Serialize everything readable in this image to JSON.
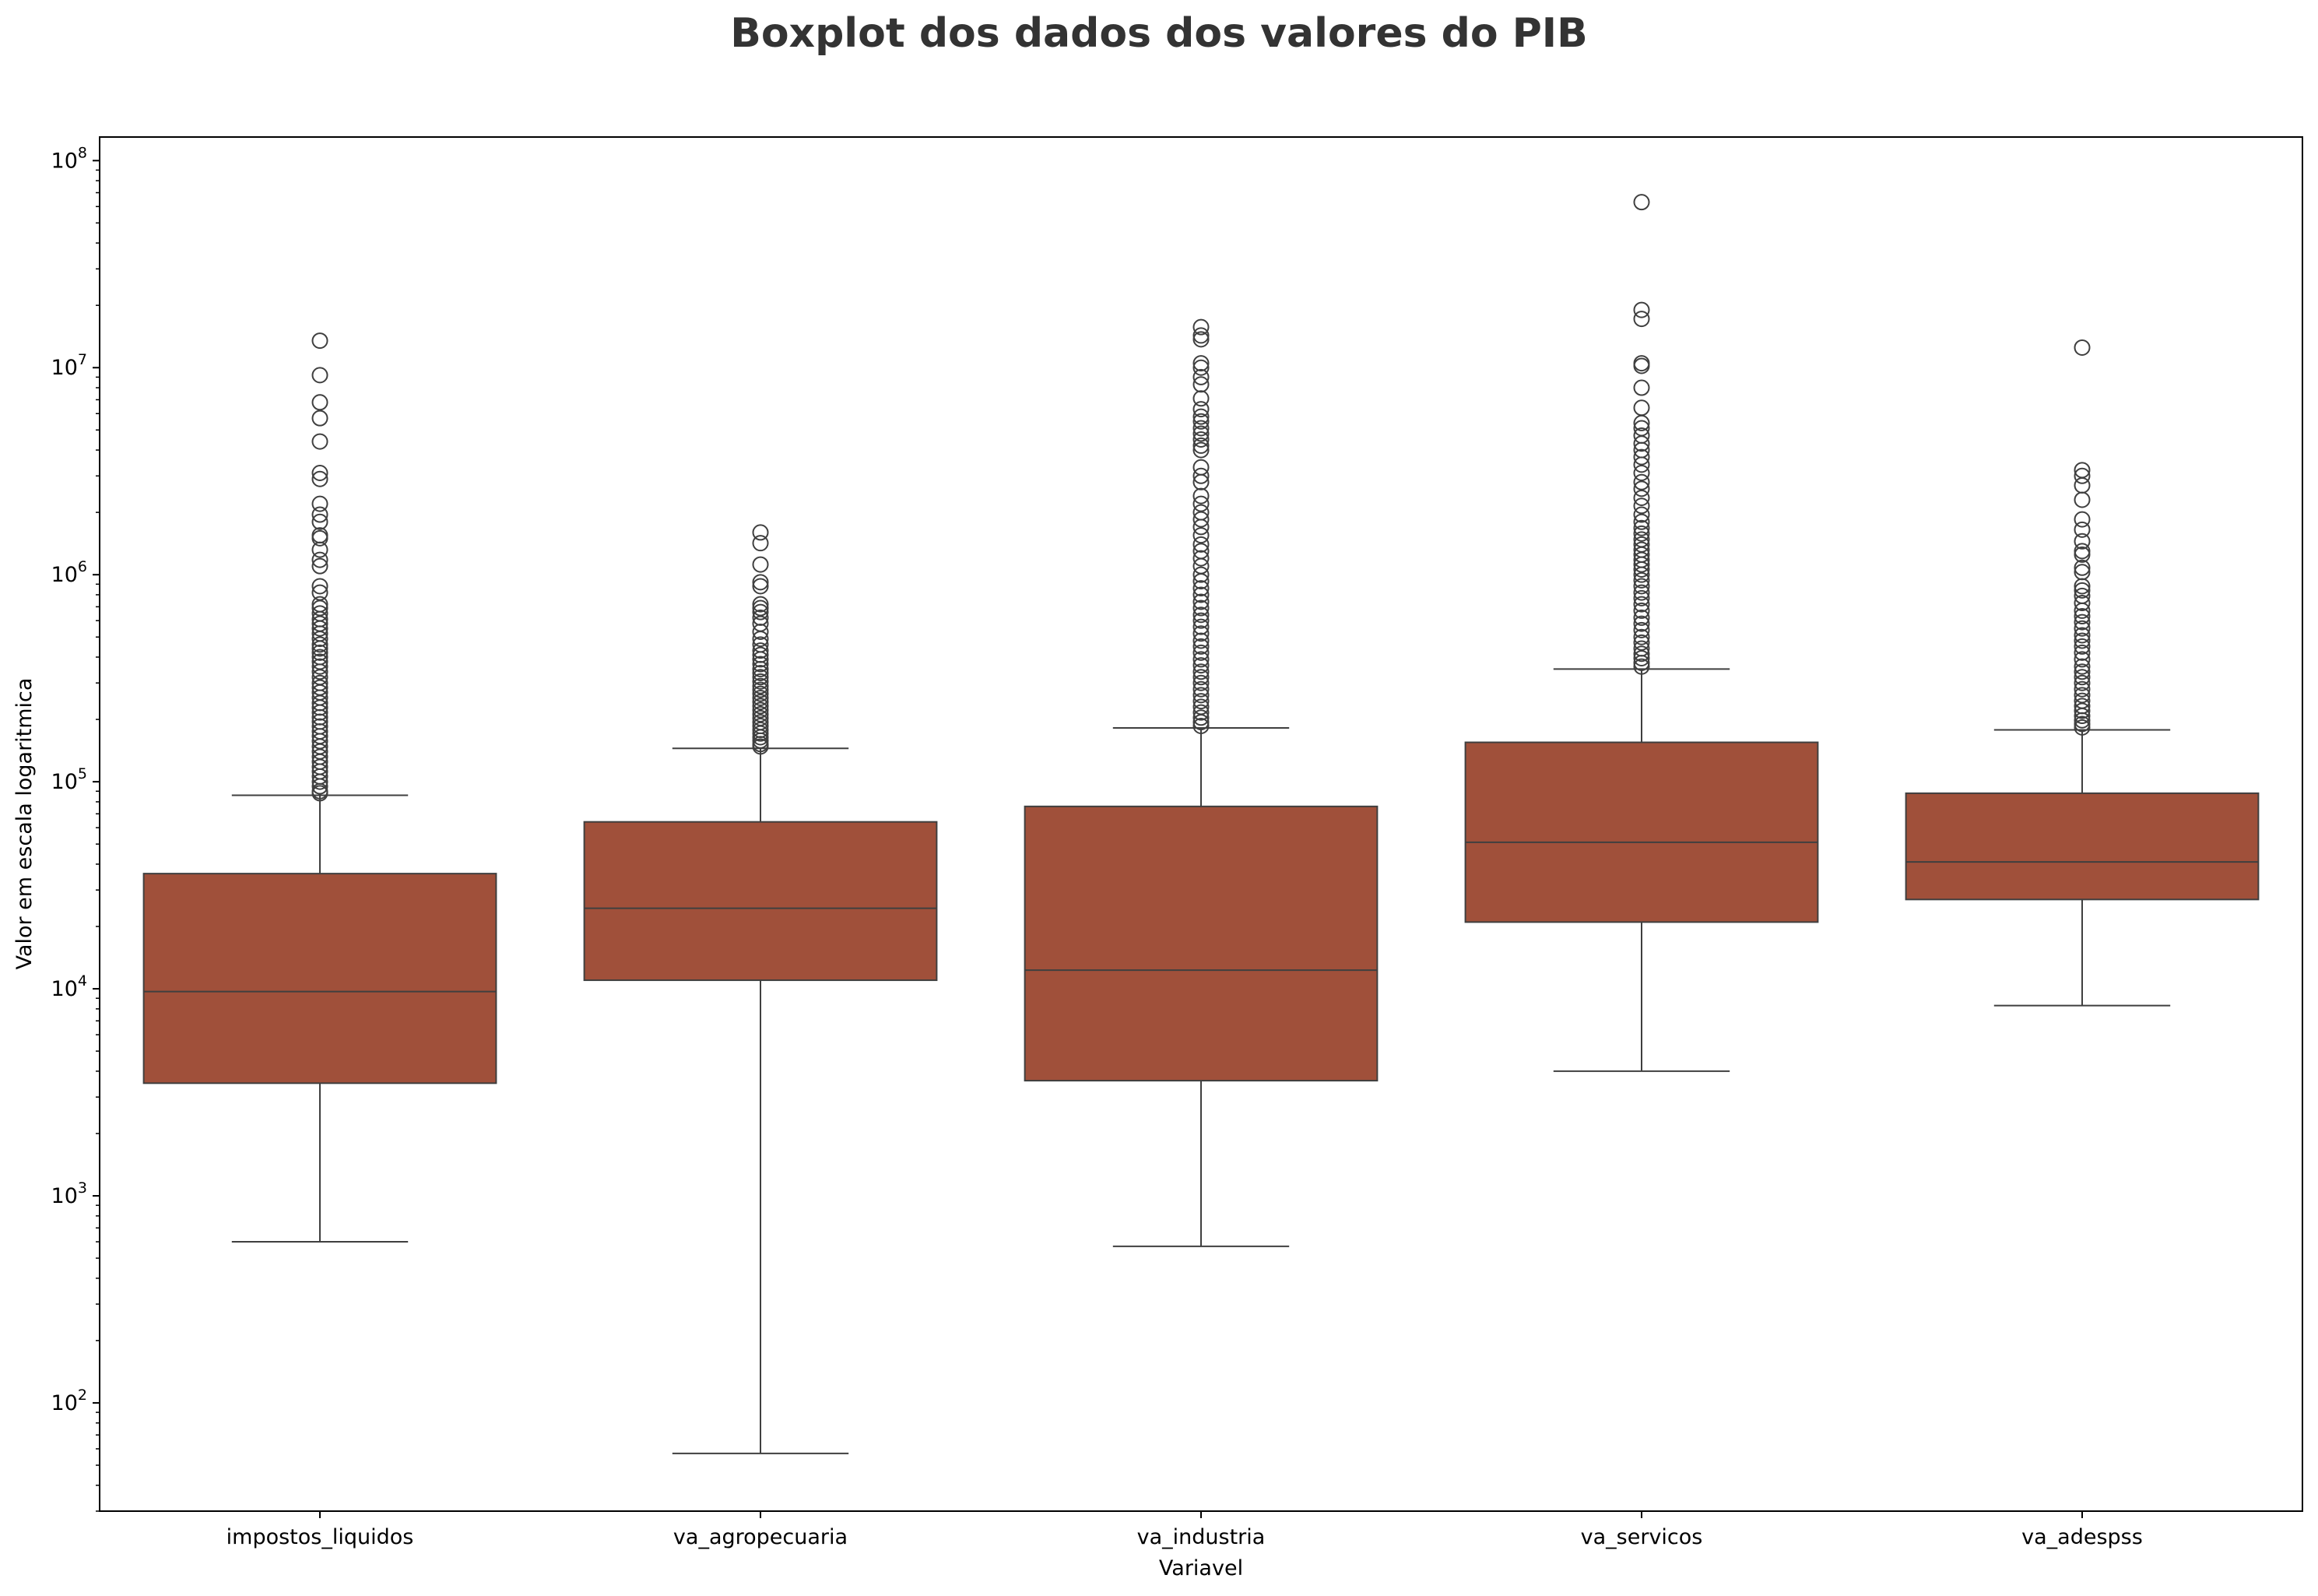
{
  "chart_data": {
    "type": "boxplot",
    "title": "Boxplot dos dados dos valores do PIB",
    "xlabel": "Variavel",
    "ylabel": "Valor em escala logaritmica",
    "yscale": "log",
    "ylim": [
      30,
      130000000
    ],
    "y_ticks": [
      {
        "value": 100,
        "base": "10",
        "exp": "2"
      },
      {
        "value": 1000,
        "base": "10",
        "exp": "3"
      },
      {
        "value": 10000,
        "base": "10",
        "exp": "4"
      },
      {
        "value": 100000,
        "base": "10",
        "exp": "5"
      },
      {
        "value": 1000000,
        "base": "10",
        "exp": "6"
      },
      {
        "value": 10000000,
        "base": "10",
        "exp": "7"
      },
      {
        "value": 100000000,
        "base": "10",
        "exp": "8"
      }
    ],
    "grid": false,
    "box_color": "#a0503a",
    "line_color": "#3f3f3f",
    "categories": [
      "impostos_liquidos",
      "va_agropecuaria",
      "va_industria",
      "va_servicos",
      "va_adespss"
    ],
    "boxes": [
      {
        "name": "impostos_liquidos",
        "whisker_low": 600,
        "q1": 3500,
        "median": 9700,
        "q3": 36000,
        "whisker_high": 86000,
        "outliers": [
          13500000,
          9200000,
          6800000,
          5700000,
          4400000,
          3100000,
          2900000,
          2200000,
          1950000,
          1800000,
          1550000,
          1500000,
          1320000,
          1180000,
          1100000,
          880000,
          820000,
          720000,
          690000,
          650000,
          610000,
          580000,
          550000,
          520000,
          490000,
          460000,
          440000,
          420000,
          400000,
          380000,
          360000,
          340000,
          320000,
          300000,
          285000,
          270000,
          255000,
          240000,
          228000,
          216000,
          205000,
          195000,
          185000,
          175000,
          166000,
          157000,
          148000,
          140000,
          132000,
          125000,
          118000,
          112000,
          106000,
          100000,
          95000,
          90000,
          88000
        ]
      },
      {
        "name": "va_agropecuaria",
        "whisker_low": 57,
        "q1": 11000,
        "median": 24500,
        "q3": 64000,
        "whisker_high": 145000,
        "outliers": [
          1600000,
          1420000,
          1120000,
          920000,
          880000,
          720000,
          690000,
          660000,
          620000,
          580000,
          530000,
          490000,
          460000,
          430000,
          410000,
          390000,
          370000,
          350000,
          335000,
          320000,
          305000,
          290000,
          278000,
          266000,
          254000,
          243000,
          232000,
          222000,
          212000,
          203000,
          194000,
          186000,
          178000,
          171000,
          164000,
          158000,
          152000,
          148000
        ]
      },
      {
        "name": "va_industria",
        "whisker_low": 570,
        "q1": 3600,
        "median": 12300,
        "q3": 76000,
        "whisker_high": 182000,
        "outliers": [
          15700000,
          14300000,
          13700000,
          10500000,
          10000000,
          9000000,
          8300000,
          7100000,
          6300000,
          5800000,
          5500000,
          5100000,
          4800000,
          4500000,
          4200000,
          4000000,
          3300000,
          3000000,
          2800000,
          2400000,
          2200000,
          2000000,
          1850000,
          1700000,
          1550000,
          1400000,
          1300000,
          1200000,
          1100000,
          1000000,
          930000,
          860000,
          800000,
          740000,
          690000,
          640000,
          600000,
          560000,
          520000,
          480000,
          450000,
          420000,
          390000,
          365000,
          340000,
          320000,
          300000,
          280000,
          262000,
          245000,
          230000,
          216000,
          204000,
          194000,
          186000
        ]
      },
      {
        "name": "va_servicos",
        "whisker_low": 4000,
        "q1": 21000,
        "median": 51000,
        "q3": 155000,
        "whisker_high": 350000,
        "outliers": [
          63000000,
          19000000,
          17200000,
          10500000,
          10200000,
          8000000,
          6400000,
          5400000,
          5100000,
          4700000,
          4300000,
          4000000,
          3700000,
          3400000,
          3100000,
          2800000,
          2600000,
          2350000,
          2150000,
          1950000,
          1800000,
          1680000,
          1580000,
          1480000,
          1400000,
          1320000,
          1250000,
          1180000,
          1120000,
          1060000,
          1000000,
          940000,
          880000,
          820000,
          770000,
          720000,
          670000,
          620000,
          580000,
          540000,
          500000,
          470000,
          440000,
          415000,
          395000,
          375000,
          360000
        ]
      },
      {
        "name": "va_adespss",
        "whisker_low": 8300,
        "q1": 27000,
        "median": 41000,
        "q3": 88000,
        "whisker_high": 178000,
        "outliers": [
          12500000,
          3200000,
          3000000,
          2700000,
          2300000,
          1850000,
          1650000,
          1450000,
          1300000,
          1250000,
          1080000,
          1030000,
          880000,
          840000,
          790000,
          730000,
          670000,
          630000,
          590000,
          550000,
          510000,
          480000,
          450000,
          420000,
          390000,
          360000,
          340000,
          320000,
          300000,
          280000,
          262000,
          246000,
          232000,
          220000,
          208000,
          198000,
          190000,
          183000
        ]
      }
    ]
  }
}
